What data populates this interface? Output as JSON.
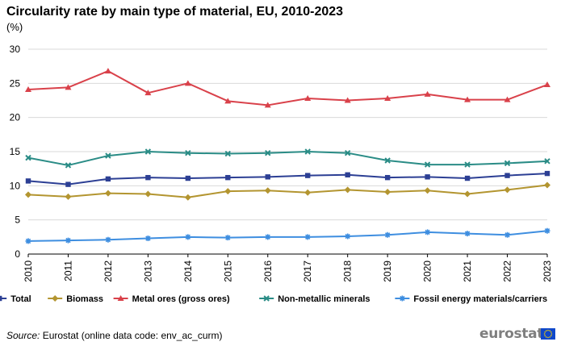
{
  "chart_data": {
    "type": "line",
    "title": "Circularity rate by main type of material, EU, 2010-2023",
    "unit_label": "(%)",
    "xlabel": "",
    "ylabel": "",
    "x": [
      "2010",
      "2011",
      "2012",
      "2013",
      "2014",
      "2015",
      "2016",
      "2017",
      "2018",
      "2019",
      "2020",
      "2021",
      "2022",
      "2023"
    ],
    "ylim": [
      0,
      30
    ],
    "yticks": [
      "0",
      "5",
      "10",
      "15",
      "20",
      "25",
      "30"
    ],
    "grid": true,
    "legend_position": "bottom",
    "series": [
      {
        "name": "Total",
        "color": "#2c3f94",
        "marker": "square",
        "values": [
          10.7,
          10.2,
          11.0,
          11.2,
          11.1,
          11.2,
          11.3,
          11.5,
          11.6,
          11.2,
          11.3,
          11.1,
          11.5,
          11.8
        ]
      },
      {
        "name": "Biomass",
        "color": "#b39530",
        "marker": "diamond",
        "values": [
          8.7,
          8.4,
          8.9,
          8.8,
          8.3,
          9.2,
          9.3,
          9.0,
          9.4,
          9.1,
          9.3,
          8.8,
          9.4,
          10.1
        ]
      },
      {
        "name": "Metal ores (gross ores)",
        "color": "#d9414a",
        "marker": "triangle",
        "values": [
          24.1,
          24.4,
          26.8,
          23.6,
          25.0,
          22.4,
          21.8,
          22.8,
          22.5,
          22.8,
          23.4,
          22.6,
          22.6,
          24.8
        ]
      },
      {
        "name": "Non-metallic minerals",
        "color": "#2a8c86",
        "marker": "x",
        "values": [
          14.1,
          13.0,
          14.4,
          15.0,
          14.8,
          14.7,
          14.8,
          15.0,
          14.8,
          13.7,
          13.1,
          13.1,
          13.3,
          13.6
        ]
      },
      {
        "name": "Fossil energy materials/carriers",
        "color": "#3e8ee0",
        "marker": "asterisk",
        "values": [
          1.9,
          2.0,
          2.1,
          2.3,
          2.5,
          2.4,
          2.5,
          2.5,
          2.6,
          2.8,
          3.2,
          3.0,
          2.8,
          3.4
        ]
      }
    ]
  },
  "source": {
    "label": "Source:",
    "text": "Eurostat (online data code: env_ac_curm)"
  },
  "logo": {
    "text": "eurostat"
  }
}
